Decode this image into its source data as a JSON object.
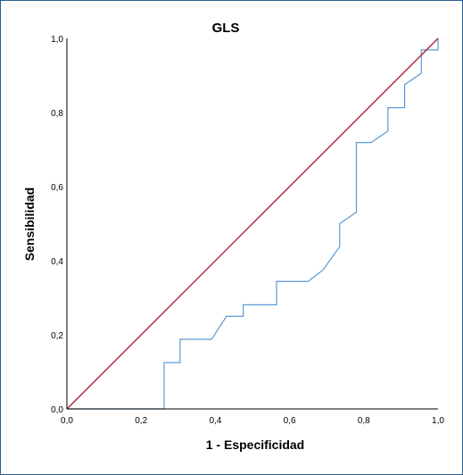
{
  "chart_data": {
    "type": "line",
    "title": "GLS",
    "xlabel": "1 - Especificidad",
    "ylabel": "Sensibilidad",
    "xlim": [
      0,
      1
    ],
    "ylim": [
      0,
      1
    ],
    "x_ticks": [
      "0,0",
      "0,2",
      "0,4",
      "0,6",
      "0,8",
      "1,0"
    ],
    "y_ticks": [
      "0,0",
      "0,2",
      "0,4",
      "0,6",
      "0,8",
      "1,0"
    ],
    "grid": false,
    "series": [
      {
        "color": "#5b9bd5",
        "points": [
          [
            0.0,
            0.0
          ],
          [
            0.262,
            0.0
          ],
          [
            0.262,
            0.125
          ],
          [
            0.305,
            0.125
          ],
          [
            0.305,
            0.188
          ],
          [
            0.39,
            0.188
          ],
          [
            0.43,
            0.25
          ],
          [
            0.475,
            0.25
          ],
          [
            0.475,
            0.281
          ],
          [
            0.565,
            0.281
          ],
          [
            0.565,
            0.344
          ],
          [
            0.65,
            0.344
          ],
          [
            0.69,
            0.375
          ],
          [
            0.735,
            0.438
          ],
          [
            0.735,
            0.5
          ],
          [
            0.78,
            0.531
          ],
          [
            0.78,
            0.719
          ],
          [
            0.82,
            0.719
          ],
          [
            0.865,
            0.75
          ],
          [
            0.865,
            0.813
          ],
          [
            0.91,
            0.813
          ],
          [
            0.91,
            0.875
          ],
          [
            0.955,
            0.906
          ],
          [
            0.955,
            0.969
          ],
          [
            1.0,
            0.969
          ],
          [
            1.0,
            1.0
          ]
        ]
      },
      {
        "color": "#b22234",
        "points": [
          [
            0.0,
            0.0
          ],
          [
            1.0,
            1.0
          ]
        ]
      }
    ]
  }
}
